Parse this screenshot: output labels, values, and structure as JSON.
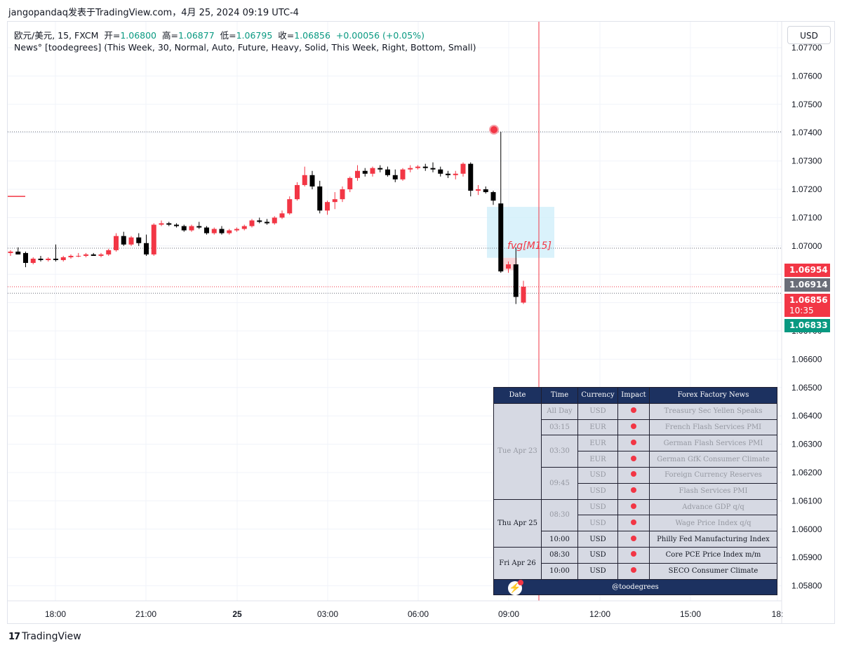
{
  "caption": "jangopandaq发表于TradingView.com，4月 25, 2024 09:19 UTC-4",
  "legend": {
    "symbol": "欧元/美元, 15, FXCM",
    "open_label": "开=",
    "open": "1.06800",
    "high_label": "高=",
    "high": "1.06877",
    "low_label": "低=",
    "low": "1.06795",
    "close_label": "收=",
    "close": "1.06856",
    "change": "+0.00056 (+0.05%)",
    "indicator": "News° [toodegrees] (This Week, 30, Normal, Auto, Future, Heavy, Solid, This Week, Right, Bottom, Small)"
  },
  "currency_button": "USD",
  "price_tags": {
    "t1": "1.06954",
    "t2": "1.06914",
    "t3": "1.06856",
    "t3_timer": "10:35",
    "t4": "1.06833"
  },
  "fvg_label": "fvg[M15]",
  "news_table": {
    "headers": [
      "Date",
      "Time",
      "Currency",
      "Impact",
      "Forex Factory News"
    ],
    "groups": [
      {
        "date": "Tue Apr 23",
        "rows": [
          {
            "time": "All Day",
            "currency": "USD",
            "news": "Treasury Sec Yellen Speaks"
          },
          {
            "time": "03:15",
            "currency": "EUR",
            "news": "French Flash Services PMI"
          },
          {
            "time": "03:30",
            "currency": "EUR",
            "news": "German Flash Services PMI"
          },
          {
            "time": "",
            "currency": "EUR",
            "news": "German GfK Consumer Climate"
          },
          {
            "time": "09:45",
            "currency": "USD",
            "news": "Foreign Currency Reserves"
          },
          {
            "time": "",
            "currency": "USD",
            "news": "Flash Services PMI"
          }
        ]
      },
      {
        "date": "Thu Apr 25",
        "rows": [
          {
            "time": "08:30",
            "currency": "USD",
            "news": "Advance GDP q/q"
          },
          {
            "time": "",
            "currency": "USD",
            "news": "Wage Price Index q/q"
          },
          {
            "time": "10:00",
            "currency": "USD",
            "news": "Philly Fed Manufacturing Index"
          }
        ]
      },
      {
        "date": "Fri Apr 26",
        "rows": [
          {
            "time": "08:30",
            "currency": "USD",
            "news": "Core PCE Price Index m/m"
          },
          {
            "time": "10:00",
            "currency": "USD",
            "news": "SECO Consumer Climate"
          }
        ]
      }
    ],
    "footer": "@toodegrees"
  },
  "branding": "TradingView",
  "colors": {
    "up": "#f23645",
    "down": "#000000",
    "accent_red": "#f23645",
    "green": "#089981",
    "table_header": "#1c3160",
    "fvg": "#cdeefa"
  },
  "chart_data": {
    "type": "candlestick",
    "title": "欧元/美元, 15, FXCM",
    "timeframe": "15",
    "x_ticks": [
      "18:00",
      "21:00",
      "25",
      "03:00",
      "06:00",
      "09:00",
      "12:00",
      "15:00",
      "18:"
    ],
    "y_ticks": [
      "1.07700",
      "1.07600",
      "1.07500",
      "1.07400",
      "1.07300",
      "1.07200",
      "1.07100",
      "1.07000",
      "1.06900",
      "1.06800",
      "1.06700",
      "1.06600",
      "1.06500",
      "1.06400",
      "1.06300",
      "1.06200",
      "1.06100",
      "1.06000",
      "1.05900",
      "1.05800"
    ],
    "ylim": [
      1.0579,
      1.0779
    ],
    "grid": true,
    "hlines": [
      1.07403,
      1.06992,
      1.06856,
      1.06833
    ],
    "fvg_zone": {
      "label": "fvg[M15]",
      "top": 1.07138,
      "bottom": 1.06958
    },
    "candles": [
      {
        "o": 1.06975,
        "h": 1.06985,
        "l": 1.06965,
        "c": 1.0698
      },
      {
        "o": 1.0698,
        "h": 1.06995,
        "l": 1.0697,
        "c": 1.0697
      },
      {
        "o": 1.06975,
        "h": 1.0698,
        "l": 1.06925,
        "c": 1.0694
      },
      {
        "o": 1.0694,
        "h": 1.0696,
        "l": 1.06935,
        "c": 1.06955
      },
      {
        "o": 1.06955,
        "h": 1.06965,
        "l": 1.06945,
        "c": 1.0695
      },
      {
        "o": 1.0695,
        "h": 1.0696,
        "l": 1.06945,
        "c": 1.06955
      },
      {
        "o": 1.06955,
        "h": 1.07005,
        "l": 1.06945,
        "c": 1.0695
      },
      {
        "o": 1.0695,
        "h": 1.06965,
        "l": 1.06945,
        "c": 1.0696
      },
      {
        "o": 1.0696,
        "h": 1.0697,
        "l": 1.06955,
        "c": 1.06965
      },
      {
        "o": 1.06965,
        "h": 1.06975,
        "l": 1.0696,
        "c": 1.06965
      },
      {
        "o": 1.06965,
        "h": 1.06975,
        "l": 1.0696,
        "c": 1.0697
      },
      {
        "o": 1.0697,
        "h": 1.06975,
        "l": 1.06965,
        "c": 1.06965
      },
      {
        "o": 1.06965,
        "h": 1.06975,
        "l": 1.0696,
        "c": 1.0697
      },
      {
        "o": 1.0697,
        "h": 1.0699,
        "l": 1.06965,
        "c": 1.06985
      },
      {
        "o": 1.06985,
        "h": 1.07045,
        "l": 1.0698,
        "c": 1.07035
      },
      {
        "o": 1.07035,
        "h": 1.0705,
        "l": 1.07,
        "c": 1.07005
      },
      {
        "o": 1.07005,
        "h": 1.07035,
        "l": 1.07,
        "c": 1.0703
      },
      {
        "o": 1.0703,
        "h": 1.07045,
        "l": 1.07,
        "c": 1.0701
      },
      {
        "o": 1.0701,
        "h": 1.0704,
        "l": 1.06965,
        "c": 1.0697
      },
      {
        "o": 1.0697,
        "h": 1.0708,
        "l": 1.06965,
        "c": 1.07075
      },
      {
        "o": 1.07075,
        "h": 1.0709,
        "l": 1.0707,
        "c": 1.0708
      },
      {
        "o": 1.0708,
        "h": 1.07085,
        "l": 1.0707,
        "c": 1.07075
      },
      {
        "o": 1.07075,
        "h": 1.0708,
        "l": 1.07065,
        "c": 1.0707
      },
      {
        "o": 1.0707,
        "h": 1.07075,
        "l": 1.0705,
        "c": 1.07055
      },
      {
        "o": 1.07055,
        "h": 1.07075,
        "l": 1.0705,
        "c": 1.0707
      },
      {
        "o": 1.0707,
        "h": 1.07085,
        "l": 1.0706,
        "c": 1.07065
      },
      {
        "o": 1.07065,
        "h": 1.0707,
        "l": 1.0704,
        "c": 1.07045
      },
      {
        "o": 1.07045,
        "h": 1.07065,
        "l": 1.0704,
        "c": 1.0706
      },
      {
        "o": 1.0706,
        "h": 1.0707,
        "l": 1.0704,
        "c": 1.07045
      },
      {
        "o": 1.07045,
        "h": 1.0706,
        "l": 1.0704,
        "c": 1.07055
      },
      {
        "o": 1.07055,
        "h": 1.07065,
        "l": 1.0705,
        "c": 1.0706
      },
      {
        "o": 1.0706,
        "h": 1.07075,
        "l": 1.07055,
        "c": 1.0707
      },
      {
        "o": 1.0707,
        "h": 1.07095,
        "l": 1.07065,
        "c": 1.0709
      },
      {
        "o": 1.0709,
        "h": 1.071,
        "l": 1.0708,
        "c": 1.07085
      },
      {
        "o": 1.07085,
        "h": 1.07095,
        "l": 1.07075,
        "c": 1.0708
      },
      {
        "o": 1.0708,
        "h": 1.07105,
        "l": 1.07075,
        "c": 1.071
      },
      {
        "o": 1.071,
        "h": 1.07125,
        "l": 1.07095,
        "c": 1.07115
      },
      {
        "o": 1.07115,
        "h": 1.07175,
        "l": 1.0711,
        "c": 1.07165
      },
      {
        "o": 1.07165,
        "h": 1.07225,
        "l": 1.0716,
        "c": 1.07215
      },
      {
        "o": 1.07215,
        "h": 1.0728,
        "l": 1.0721,
        "c": 1.0725
      },
      {
        "o": 1.0725,
        "h": 1.07265,
        "l": 1.072,
        "c": 1.0721
      },
      {
        "o": 1.0721,
        "h": 1.0723,
        "l": 1.07115,
        "c": 1.07125
      },
      {
        "o": 1.07125,
        "h": 1.0716,
        "l": 1.0711,
        "c": 1.07155
      },
      {
        "o": 1.07155,
        "h": 1.0719,
        "l": 1.0713,
        "c": 1.07165
      },
      {
        "o": 1.07165,
        "h": 1.0721,
        "l": 1.07155,
        "c": 1.072
      },
      {
        "o": 1.072,
        "h": 1.07245,
        "l": 1.0719,
        "c": 1.0724
      },
      {
        "o": 1.0724,
        "h": 1.07285,
        "l": 1.0723,
        "c": 1.07265
      },
      {
        "o": 1.07265,
        "h": 1.07275,
        "l": 1.07245,
        "c": 1.07255
      },
      {
        "o": 1.07255,
        "h": 1.0728,
        "l": 1.07245,
        "c": 1.07275
      },
      {
        "o": 1.07275,
        "h": 1.07285,
        "l": 1.0726,
        "c": 1.0727
      },
      {
        "o": 1.0727,
        "h": 1.0728,
        "l": 1.07245,
        "c": 1.0725
      },
      {
        "o": 1.0725,
        "h": 1.0727,
        "l": 1.07225,
        "c": 1.07235
      },
      {
        "o": 1.07235,
        "h": 1.07275,
        "l": 1.0723,
        "c": 1.0727
      },
      {
        "o": 1.0727,
        "h": 1.07285,
        "l": 1.0726,
        "c": 1.07275
      },
      {
        "o": 1.07275,
        "h": 1.07285,
        "l": 1.0727,
        "c": 1.0728
      },
      {
        "o": 1.0728,
        "h": 1.0729,
        "l": 1.07265,
        "c": 1.07275
      },
      {
        "o": 1.07275,
        "h": 1.07295,
        "l": 1.0726,
        "c": 1.0727
      },
      {
        "o": 1.0727,
        "h": 1.0728,
        "l": 1.07245,
        "c": 1.07255
      },
      {
        "o": 1.07255,
        "h": 1.07265,
        "l": 1.0724,
        "c": 1.0725
      },
      {
        "o": 1.0725,
        "h": 1.07265,
        "l": 1.07235,
        "c": 1.07255
      },
      {
        "o": 1.07255,
        "h": 1.07295,
        "l": 1.07245,
        "c": 1.0729
      },
      {
        "o": 1.0729,
        "h": 1.07295,
        "l": 1.07175,
        "c": 1.07195
      },
      {
        "o": 1.07195,
        "h": 1.07215,
        "l": 1.0718,
        "c": 1.072
      },
      {
        "o": 1.072,
        "h": 1.0721,
        "l": 1.07185,
        "c": 1.0719
      },
      {
        "o": 1.0719,
        "h": 1.07195,
        "l": 1.07145,
        "c": 1.0716
      },
      {
        "o": 1.0715,
        "h": 1.07403,
        "l": 1.06905,
        "c": 1.0691
      },
      {
        "o": 1.0692,
        "h": 1.06945,
        "l": 1.06905,
        "c": 1.06935
      },
      {
        "o": 1.06935,
        "h": 1.06995,
        "l": 1.06795,
        "c": 1.0682
      },
      {
        "o": 1.068,
        "h": 1.06877,
        "l": 1.06795,
        "c": 1.06856
      }
    ]
  }
}
